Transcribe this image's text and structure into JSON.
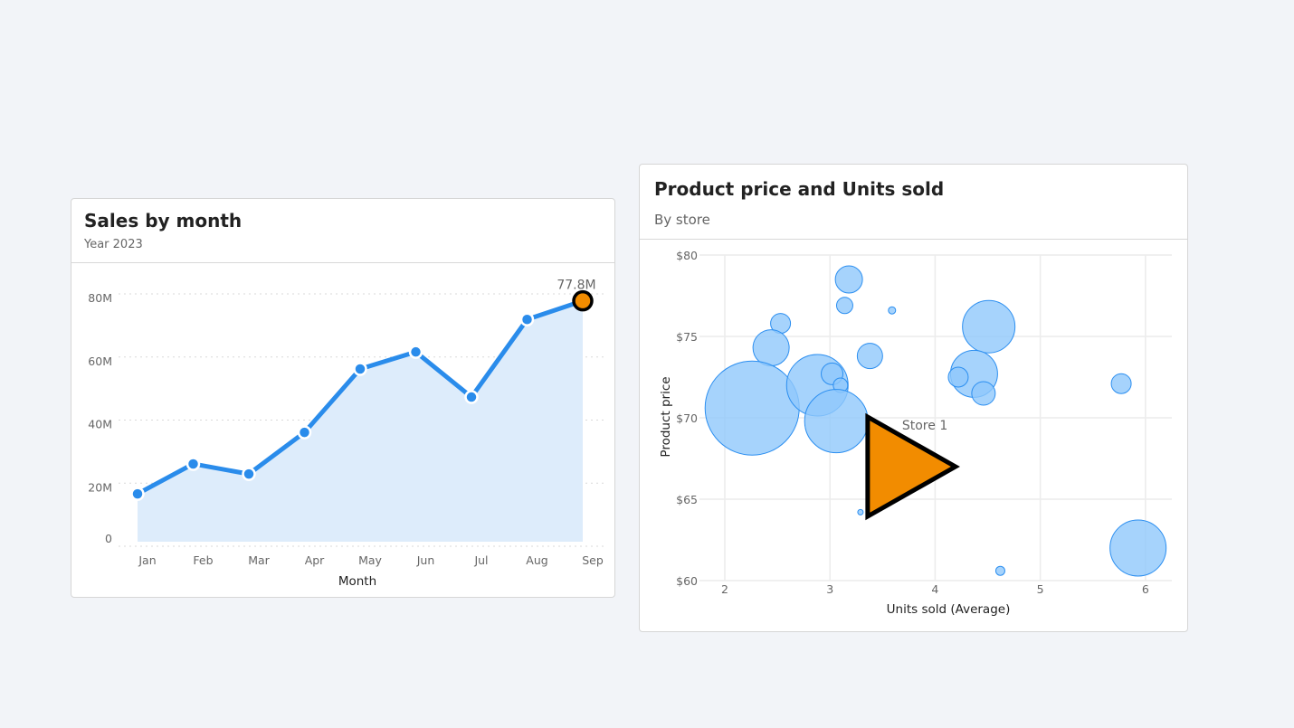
{
  "colors": {
    "background": "#f2f4f8",
    "line": "#2a8ceb",
    "area": "#ddecfb",
    "highlight": "#f28c00",
    "highlight_stroke": "#000000",
    "bubble_fill": "#90c8fb",
    "bubble_stroke": "#2b8ef0"
  },
  "sales_card": {
    "title": "Sales by month",
    "subtitle": "Year 2023"
  },
  "price_card": {
    "title": "Product price and Units sold",
    "subtitle": "By store"
  },
  "chart_data": [
    {
      "type": "area",
      "title": "Sales by month",
      "subtitle": "Year 2023",
      "xlabel": "Month",
      "ylabel": "",
      "categories": [
        "Jan",
        "Feb",
        "Mar",
        "Apr",
        "May",
        "Jun",
        "Jul",
        "Aug",
        "Sep"
      ],
      "values": [
        16.6,
        26.1,
        22.9,
        36.1,
        56.2,
        61.6,
        47.3,
        71.9,
        77.8
      ],
      "unit": "M",
      "ylim": [
        0,
        80
      ],
      "yticks": [
        "0",
        "20M",
        "40M",
        "60M",
        "80M"
      ],
      "ytick_values": [
        0,
        20,
        40,
        60,
        80
      ],
      "grid": true,
      "highlight": {
        "index": 8,
        "label": "77.8M"
      }
    },
    {
      "type": "scatter",
      "title": "Product price and Units sold",
      "subtitle": "By store",
      "xlabel": "Units sold (Average)",
      "ylabel": "Product price",
      "xlim": [
        1.8,
        6.2
      ],
      "ylim": [
        60,
        80
      ],
      "xticks": [
        "2",
        "3",
        "4",
        "5",
        "6"
      ],
      "xtick_values": [
        2,
        3,
        4,
        5,
        6
      ],
      "yticks": [
        "$60",
        "$65",
        "$70",
        "$75",
        "$80"
      ],
      "ytick_values": [
        60,
        65,
        70,
        75,
        80
      ],
      "grid": true,
      "points": [
        {
          "x": 3.18,
          "y": 78.5,
          "size": 15
        },
        {
          "x": 3.14,
          "y": 76.9,
          "size": 9
        },
        {
          "x": 3.59,
          "y": 76.6,
          "size": 4
        },
        {
          "x": 2.53,
          "y": 75.8,
          "size": 11
        },
        {
          "x": 2.44,
          "y": 74.3,
          "size": 20
        },
        {
          "x": 2.26,
          "y": 70.6,
          "size": 52
        },
        {
          "x": 2.88,
          "y": 72.0,
          "size": 34
        },
        {
          "x": 3.02,
          "y": 72.7,
          "size": 12
        },
        {
          "x": 3.1,
          "y": 72.0,
          "size": 8
        },
        {
          "x": 3.06,
          "y": 69.8,
          "size": 35
        },
        {
          "x": 3.38,
          "y": 73.8,
          "size": 14
        },
        {
          "x": 4.51,
          "y": 75.6,
          "size": 29
        },
        {
          "x": 4.37,
          "y": 72.7,
          "size": 26
        },
        {
          "x": 4.22,
          "y": 72.5,
          "size": 11
        },
        {
          "x": 4.46,
          "y": 71.5,
          "size": 13
        },
        {
          "x": 5.77,
          "y": 72.1,
          "size": 11
        },
        {
          "x": 5.93,
          "y": 62.0,
          "size": 31
        },
        {
          "x": 4.62,
          "y": 60.6,
          "size": 5
        },
        {
          "x": 3.29,
          "y": 64.2,
          "size": 3
        }
      ],
      "highlight": {
        "label": "Store 1",
        "x": 3.72,
        "y": 67.0,
        "marker": "triangle-right"
      }
    }
  ]
}
